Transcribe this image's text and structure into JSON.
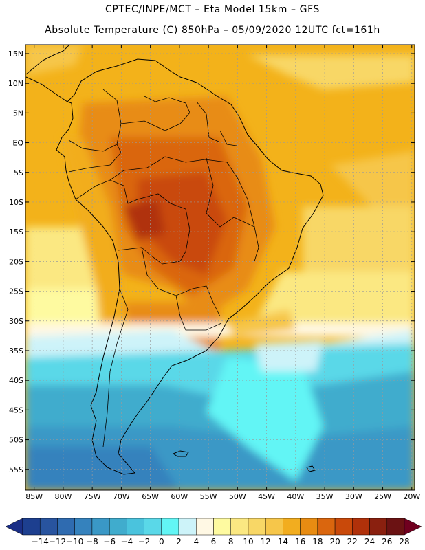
{
  "header": {
    "line1": "CPTEC/INPE/MCT –  Eta Model 15km – GFS",
    "line2": "Absolute Temperature (C) 850hPa – 05/09/2020 12UTC fct=161h"
  },
  "map": {
    "lat_labels": [
      "15N",
      "10N",
      "5N",
      "EQ",
      "5S",
      "10S",
      "15S",
      "20S",
      "25S",
      "30S",
      "35S",
      "40S",
      "45S",
      "50S",
      "55S"
    ],
    "lon_labels": [
      "85W",
      "80W",
      "75W",
      "70W",
      "65W",
      "60W",
      "55W",
      "50W",
      "45W",
      "40W",
      "35W",
      "30W",
      "25W",
      "20W"
    ],
    "extent": {
      "lon_min": -86.5,
      "lon_max": -19.5,
      "lat_min": -58.5,
      "lat_max": 16.5
    }
  },
  "colorbar": {
    "labels": [
      "-14",
      "-12",
      "-10",
      "-8",
      "-6",
      "-4",
      "-2",
      "0",
      "2",
      "4",
      "6",
      "8",
      "10",
      "12",
      "14",
      "16",
      "18",
      "20",
      "22",
      "24",
      "26",
      "28"
    ],
    "colors": [
      "#1d3f8f",
      "#28549f",
      "#2f6bb0",
      "#3582bd",
      "#3a98c6",
      "#40accd",
      "#4ac3dd",
      "#5ad8e8",
      "#62f5f5",
      "#cdf3f9",
      "#fff8e4",
      "#fefaa0",
      "#fbe882",
      "#f8d766",
      "#f6c64a",
      "#f2ad1f",
      "#e88c12",
      "#da660e",
      "#c9490a",
      "#b0310a",
      "#8a200f",
      "#6b1213"
    ],
    "left_arrow": "#1a2e86",
    "right_arrow": "#70001f"
  }
}
